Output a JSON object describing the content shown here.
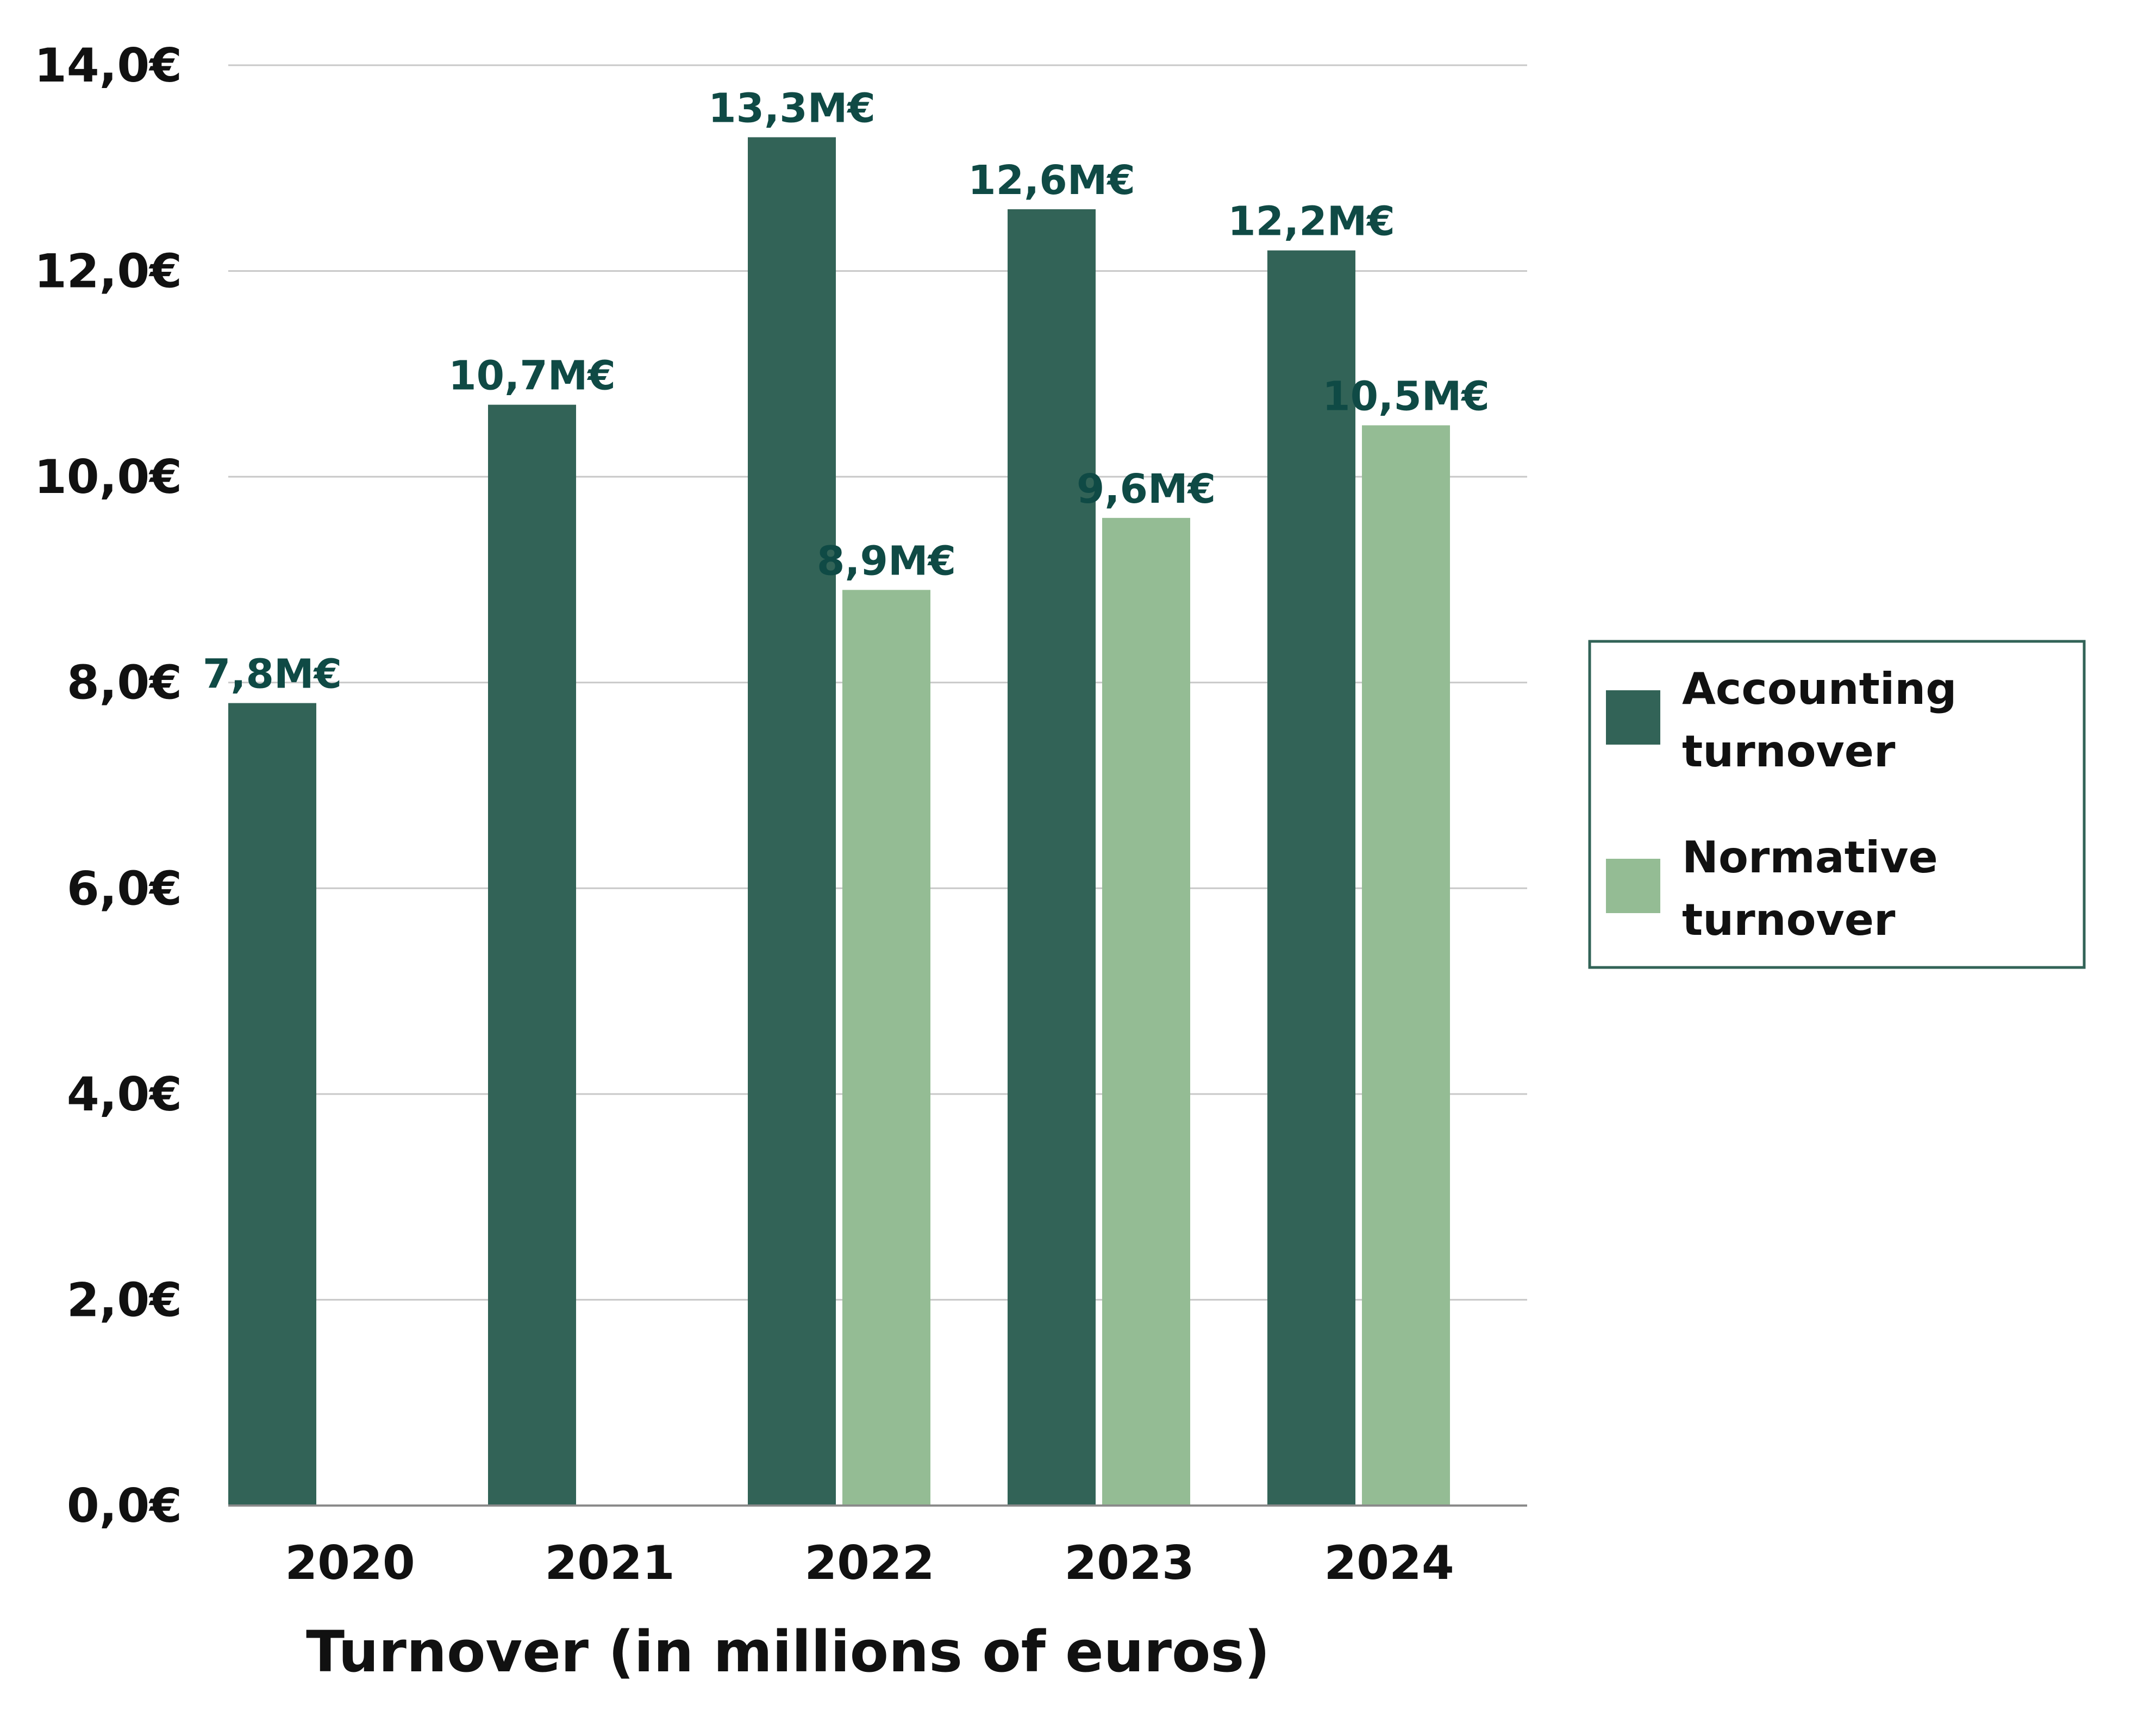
{
  "chart_data": {
    "type": "bar",
    "title": "",
    "xlabel": "Turnover (in millions of euros)",
    "ylabel": "",
    "ylim": [
      0,
      14
    ],
    "grid": true,
    "legend_position": "right",
    "categories": [
      "2020",
      "2021",
      "2022",
      "2023",
      "2024"
    ],
    "y_ticks": [
      {
        "value": 0,
        "label": "0,0€"
      },
      {
        "value": 2,
        "label": "2,0€"
      },
      {
        "value": 4,
        "label": "4,0€"
      },
      {
        "value": 6,
        "label": "6,0€"
      },
      {
        "value": 8,
        "label": "8,0€"
      },
      {
        "value": 10,
        "label": "10,0€"
      },
      {
        "value": 12,
        "label": "12,0€"
      },
      {
        "value": 14,
        "label": "14,0€"
      }
    ],
    "series": [
      {
        "name": "Accounting turnover",
        "legend_lines": [
          "Accounting",
          "turnover"
        ],
        "color": "#326357",
        "values": [
          7.8,
          10.7,
          13.3,
          12.6,
          12.2
        ],
        "labels": [
          "7,8M€",
          "10,7M€",
          "13,3M€",
          "12,6M€",
          "12,2M€"
        ]
      },
      {
        "name": "Normative turnover",
        "legend_lines": [
          "Normative",
          "turnover"
        ],
        "color": "#94bc94",
        "values": [
          null,
          null,
          8.9,
          9.6,
          10.5
        ],
        "labels": [
          "",
          "",
          "8,9M€",
          "9,6M€",
          "10,5M€"
        ]
      }
    ],
    "colors": {
      "label_text": "#0f4a45",
      "legend_border": "#326357",
      "gridline": "#c8c8c8"
    }
  }
}
